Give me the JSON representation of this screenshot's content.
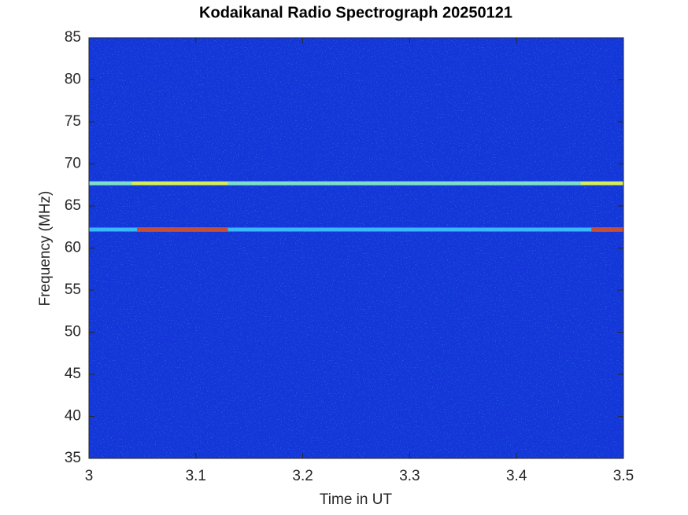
{
  "chart_data": {
    "type": "spectrogram",
    "title": "Kodaikanal Radio Spectrograph  20250121",
    "x_label": "Time in UT",
    "y_label": "Frequency (MHz)",
    "xlim": [
      3,
      3.5
    ],
    "xticks": [
      3,
      3.1,
      3.2,
      3.3,
      3.4,
      3.5
    ],
    "ylim": [
      35,
      85
    ],
    "yticks": [
      35,
      40,
      45,
      50,
      55,
      60,
      65,
      70,
      75,
      80,
      85
    ],
    "background_color": "#1436d8",
    "features": [
      {
        "value": 67.7,
        "color": "#8af0c8",
        "hot_color": "#e8f040",
        "hot": [
          [
            3.04,
            3.13
          ],
          [
            3.46,
            3.5
          ]
        ]
      },
      {
        "value": 62.2,
        "color": "#3cc8ff",
        "hot_color": "#e03a10",
        "hot": [
          [
            3.045,
            3.13
          ],
          [
            3.47,
            3.5
          ]
        ]
      }
    ]
  }
}
